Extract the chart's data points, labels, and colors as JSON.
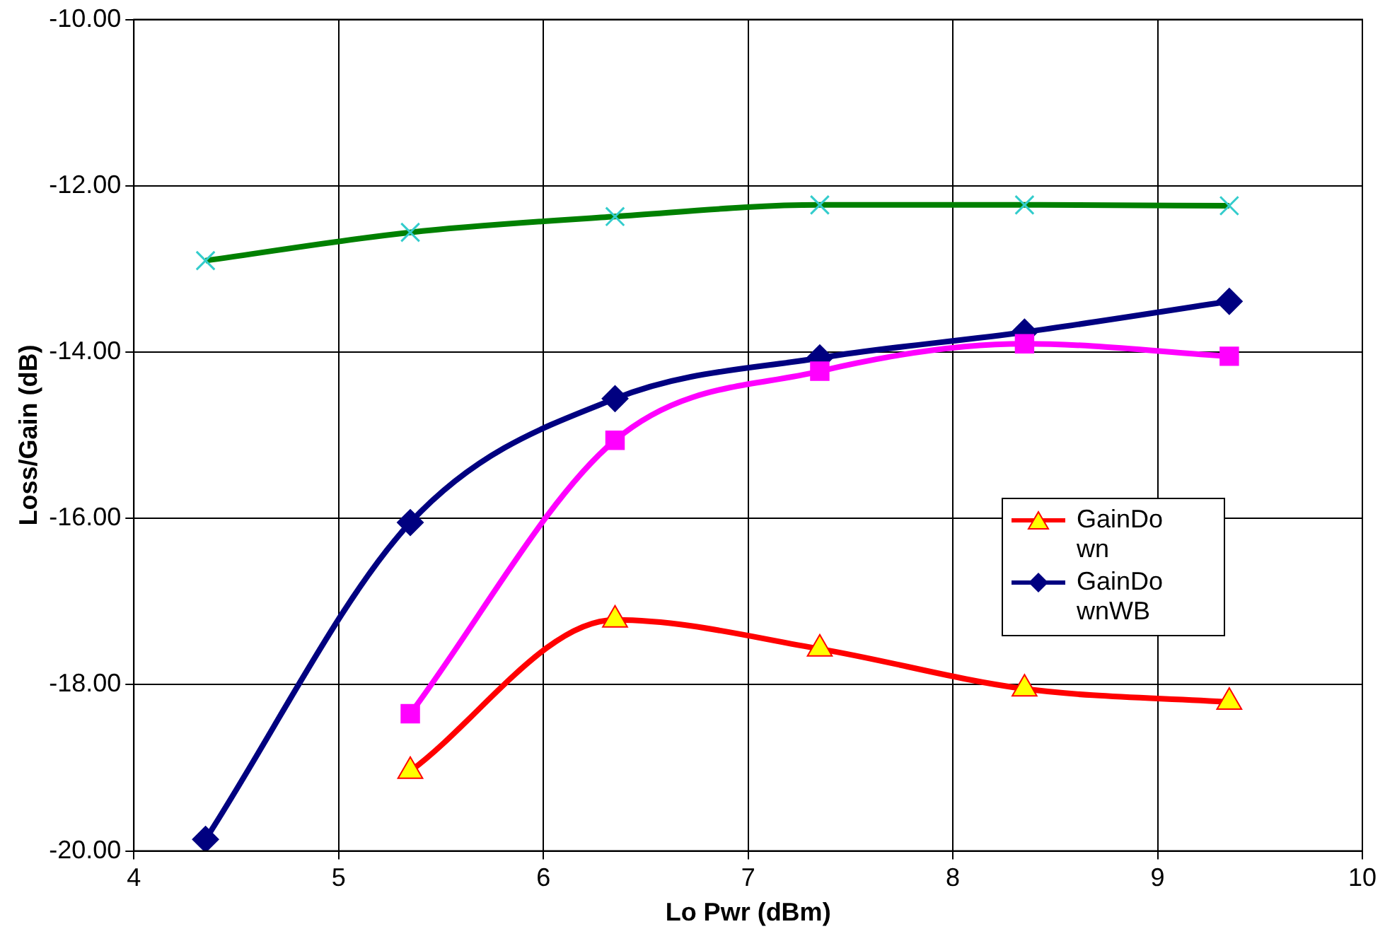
{
  "chart_data": {
    "type": "line",
    "xlabel": "Lo Pwr (dBm)",
    "ylabel": "Loss/Gain (dB)",
    "x": [
      4.35,
      5.35,
      6.35,
      7.35,
      8.35,
      9.35
    ],
    "series": [
      {
        "color": "#008000",
        "marker": "cross",
        "values": [
          -12.9,
          -12.56,
          -12.37,
          -12.23,
          -12.23,
          -12.24
        ]
      },
      {
        "color": "#ff00ff",
        "marker": "square",
        "values": [
          null,
          -18.35,
          -15.06,
          -14.23,
          -13.9,
          -14.05
        ]
      },
      {
        "name": "GainDown",
        "color": "#ff0000",
        "marker": "triangle",
        "values": [
          null,
          -19.04,
          -17.22,
          -17.57,
          -18.05,
          -18.21
        ]
      },
      {
        "name": "GainDownWB",
        "color": "#000080",
        "marker": "diamond",
        "values": [
          -19.86,
          -16.05,
          -14.56,
          -14.07,
          -13.76,
          -13.39
        ]
      }
    ],
    "xlim": [
      4,
      10
    ],
    "xticks": [
      4,
      5,
      6,
      7,
      8,
      9,
      10
    ],
    "ylim": [
      -20,
      -10
    ],
    "yticks": [
      {
        "value": -20,
        "label": "-20.00"
      },
      {
        "value": -18,
        "label": "-18.00"
      },
      {
        "value": -16,
        "label": "-16.00"
      },
      {
        "value": -14,
        "label": "-14.00"
      },
      {
        "value": -12,
        "label": "-12.00"
      },
      {
        "value": -10,
        "label": "-10.00"
      }
    ],
    "grid": true,
    "legend": "right"
  }
}
